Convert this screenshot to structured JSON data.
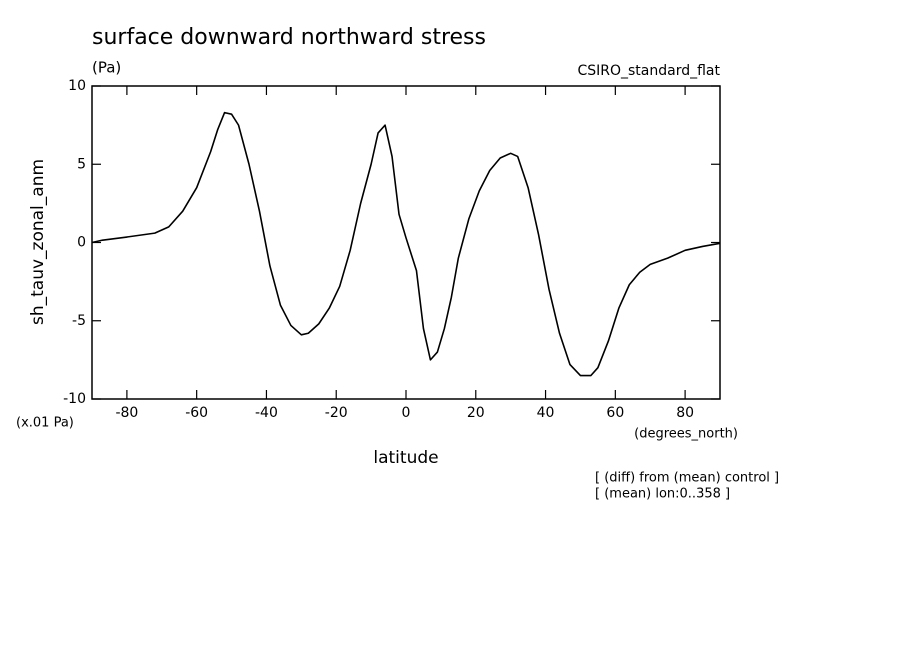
{
  "chart_data": {
    "type": "line",
    "title": "surface downward northward stress",
    "units": "(Pa)",
    "dataset": "CSIRO_standard_flat",
    "y_label": "sh_tauv_zonal_anm",
    "x_label": "latitude",
    "y_scale_note": "(x.01 Pa)",
    "x_units": "(degrees_north)",
    "notes": [
      "[ (diff) from (mean) control ]",
      "[ (mean) lon:0..358 ]"
    ],
    "xlim": [
      -90,
      90
    ],
    "ylim": [
      -10,
      10
    ],
    "xticks": [
      -80,
      -60,
      -40,
      -20,
      0,
      20,
      40,
      60,
      80
    ],
    "yticks": [
      -10,
      -5,
      0,
      5,
      10
    ],
    "series": [
      {
        "name": "sh_tauv_zonal_anm",
        "color": "#000000",
        "x": [
          -90,
          -87,
          -80,
          -72,
          -68,
          -64,
          -60,
          -56,
          -54,
          -52,
          -50,
          -48,
          -45,
          -42,
          -39,
          -36,
          -33,
          -30,
          -28,
          -25,
          -22,
          -19,
          -16,
          -13,
          -10,
          -8,
          -6,
          -4,
          -2,
          0,
          3,
          5,
          7,
          9,
          11,
          13,
          15,
          18,
          21,
          24,
          27,
          30,
          32,
          35,
          38,
          41,
          44,
          47,
          50,
          53,
          55,
          58,
          61,
          64,
          67,
          70,
          75,
          80,
          85,
          90
        ],
        "values": [
          0,
          0.15,
          0.35,
          0.6,
          1.0,
          2.0,
          3.5,
          5.8,
          7.2,
          8.3,
          8.2,
          7.5,
          5,
          2,
          -1.5,
          -4,
          -5.3,
          -5.9,
          -5.8,
          -5.2,
          -4.2,
          -2.8,
          -0.5,
          2.5,
          5.0,
          7.0,
          7.5,
          5.5,
          1.8,
          0.3,
          -1.8,
          -5.5,
          -7.5,
          -7.0,
          -5.5,
          -3.5,
          -1,
          1.5,
          3.3,
          4.6,
          5.4,
          5.7,
          5.5,
          3.5,
          0.5,
          -3,
          -5.8,
          -7.8,
          -8.5,
          -8.5,
          -8.0,
          -6.3,
          -4.2,
          -2.7,
          -1.9,
          -1.4,
          -1.0,
          -0.5,
          -0.25,
          -0.05
        ]
      }
    ]
  }
}
